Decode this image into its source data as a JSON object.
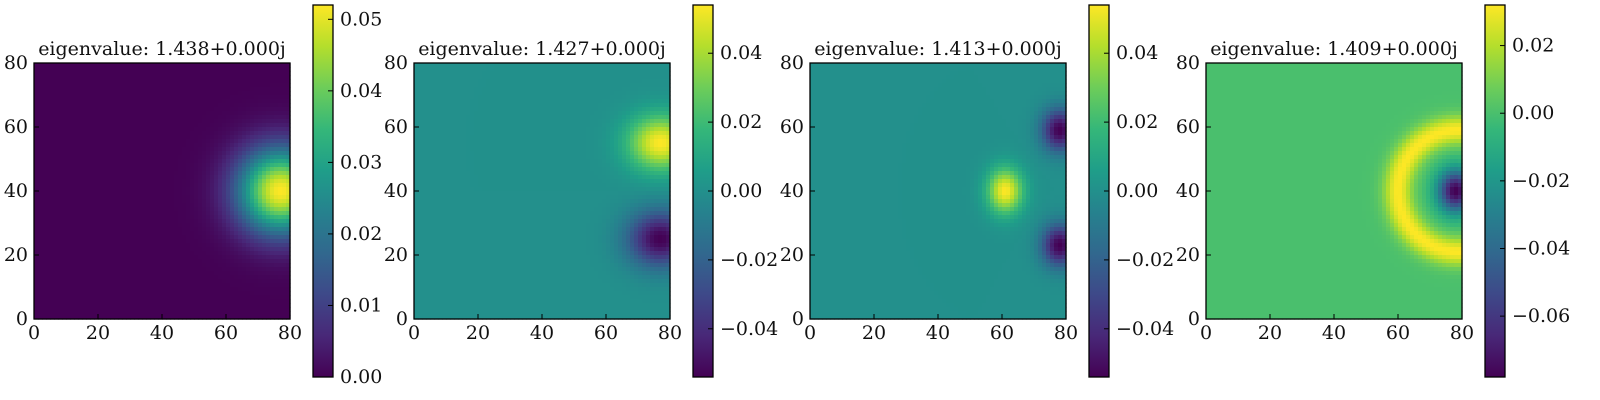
{
  "chart_data": [
    {
      "type": "heatmap",
      "title": "eigenvalue: 1.438+0.000j",
      "xlim": [
        0,
        80
      ],
      "ylim": [
        0,
        80
      ],
      "xticks": [
        "0",
        "20",
        "40",
        "60",
        "80"
      ],
      "yticks": [
        "0",
        "20",
        "40",
        "60",
        "80"
      ],
      "colorbar": {
        "range": [
          0.0,
          0.052
        ],
        "ticks": [
          0.0,
          0.01,
          0.02,
          0.03,
          0.04,
          0.05
        ],
        "tick_labels": [
          "0.00",
          "0.01",
          "0.02",
          "0.03",
          "0.04",
          "0.05"
        ]
      },
      "field": {
        "background": 0.0,
        "blobs": [
          {
            "cx": 77,
            "cy": 40,
            "rx": 13,
            "ry": 13,
            "amp": 0.052
          }
        ]
      }
    },
    {
      "type": "heatmap",
      "title": "eigenvalue: 1.427+0.000j",
      "xlim": [
        0,
        80
      ],
      "ylim": [
        0,
        80
      ],
      "xticks": [
        "0",
        "20",
        "40",
        "60",
        "80"
      ],
      "yticks": [
        "0",
        "20",
        "40",
        "60",
        "80"
      ],
      "colorbar": {
        "range": [
          -0.054,
          0.054
        ],
        "ticks": [
          -0.04,
          -0.02,
          0.0,
          0.02,
          0.04
        ],
        "tick_labels": [
          "−0.04",
          "−0.02",
          "0.00",
          "0.02",
          "0.04"
        ]
      },
      "field": {
        "background": 0.0,
        "blobs": [
          {
            "cx": 77,
            "cy": 55,
            "rx": 10,
            "ry": 8.5,
            "amp": 0.054
          },
          {
            "cx": 77,
            "cy": 25,
            "rx": 10,
            "ry": 8.5,
            "amp": -0.054
          }
        ]
      }
    },
    {
      "type": "heatmap",
      "title": "eigenvalue: 1.413+0.000j",
      "xlim": [
        0,
        80
      ],
      "ylim": [
        0,
        80
      ],
      "xticks": [
        "0",
        "20",
        "40",
        "60",
        "80"
      ],
      "yticks": [
        "0",
        "20",
        "40",
        "60",
        "80"
      ],
      "colorbar": {
        "range": [
          -0.054,
          0.054
        ],
        "ticks": [
          -0.04,
          -0.02,
          0.0,
          0.02,
          0.04
        ],
        "tick_labels": [
          "−0.04",
          "−0.02",
          "0.00",
          "0.02",
          "0.04"
        ]
      },
      "field": {
        "background": 0.0,
        "blobs": [
          {
            "cx": 61,
            "cy": 40,
            "rx": 5.5,
            "ry": 7,
            "amp": 0.054
          },
          {
            "cx": 78,
            "cy": 59,
            "rx": 5.5,
            "ry": 6.5,
            "amp": -0.054
          },
          {
            "cx": 78,
            "cy": 23,
            "rx": 5.5,
            "ry": 6.5,
            "amp": -0.054
          }
        ]
      }
    },
    {
      "type": "heatmap",
      "title": "eigenvalue: 1.409+0.000j",
      "xlim": [
        0,
        80
      ],
      "ylim": [
        0,
        80
      ],
      "xticks": [
        "0",
        "20",
        "40",
        "60",
        "80"
      ],
      "yticks": [
        "0",
        "20",
        "40",
        "60",
        "80"
      ],
      "colorbar": {
        "range": [
          -0.078,
          0.032
        ],
        "ticks": [
          -0.06,
          -0.04,
          -0.02,
          0.0,
          0.02
        ],
        "tick_labels": [
          "−0.06",
          "−0.04",
          "−0.02",
          "0.00",
          "0.02"
        ]
      },
      "field": {
        "background": 0.0,
        "blobs": [
          {
            "cx": 78,
            "cy": 40,
            "rx": 5.5,
            "ry": 6.5,
            "amp": -0.078
          }
        ],
        "ring": {
          "cx": 79,
          "cy": 40,
          "r": 19,
          "w": 4.5,
          "amp": 0.032
        }
      }
    }
  ]
}
